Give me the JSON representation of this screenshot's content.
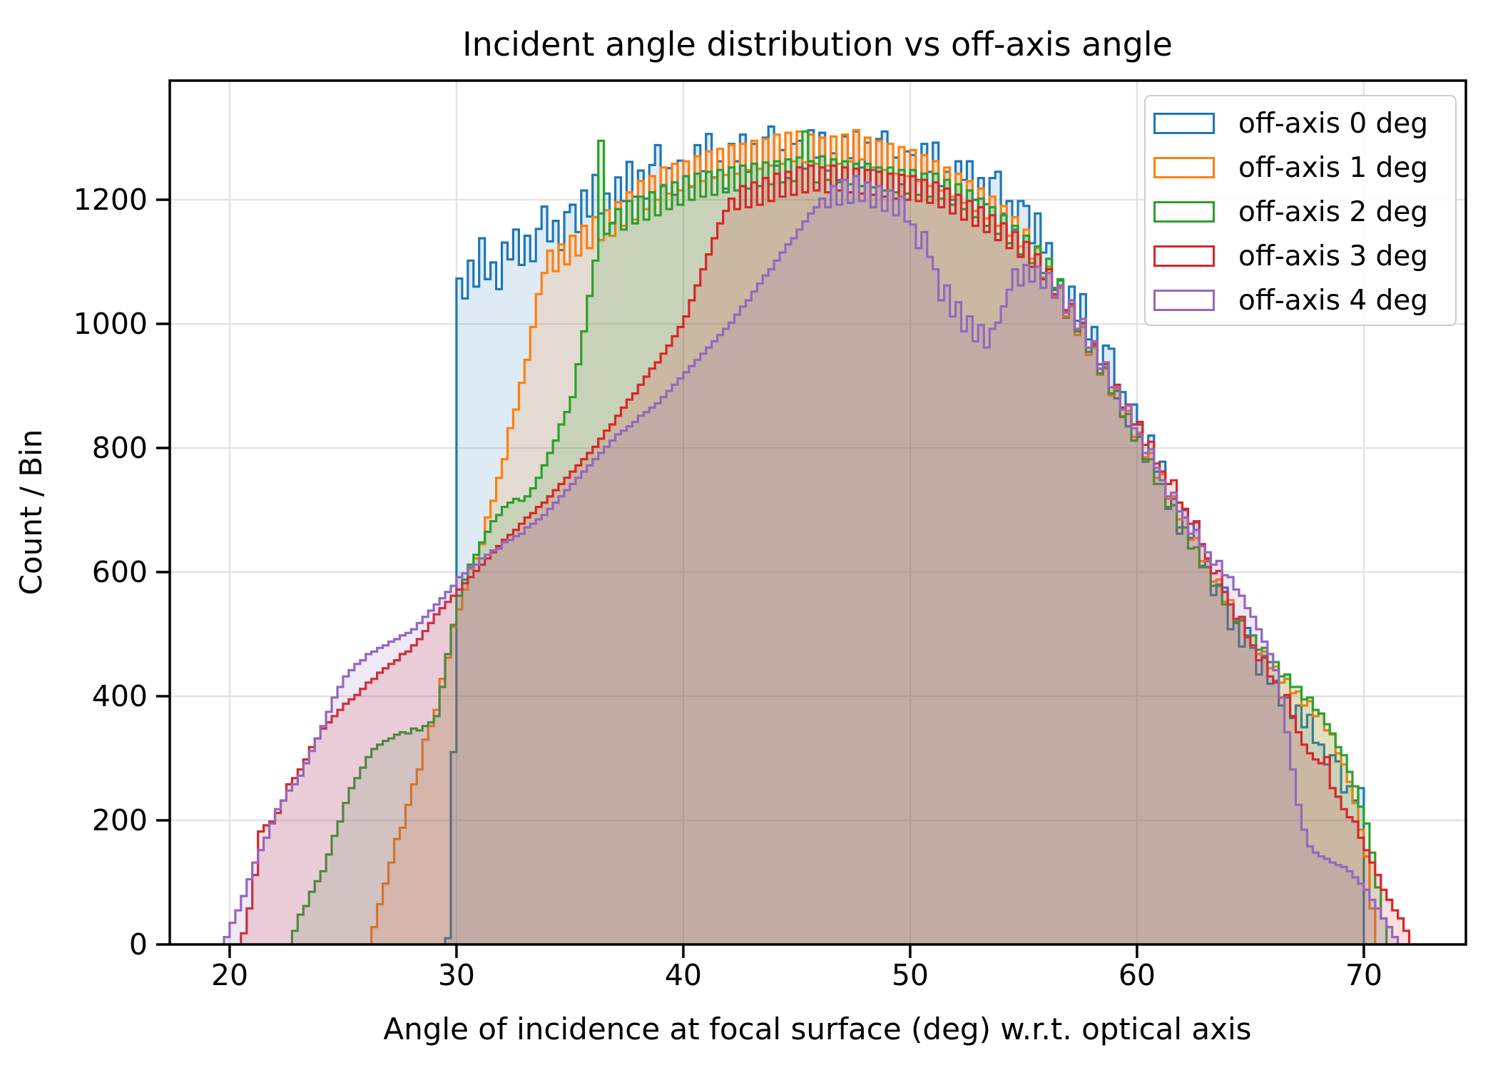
{
  "title": "Incident angle distribution vs off-axis angle",
  "xlabel": "Angle of incidence at focal surface (deg) w.r.t. optical axis",
  "ylabel": "Count / Bin",
  "colors": {
    "series_blue": "#1f77b4",
    "series_orange": "#ff7f0e",
    "series_green": "#2ca02c",
    "series_red": "#d62728",
    "series_purple": "#9467bd",
    "grid": "#e2e2e2",
    "spine": "#000000",
    "legend_border": "#cccccc"
  },
  "chart_data": {
    "type": "step-histogram",
    "title": "Incident angle distribution vs off-axis angle",
    "xlabel": "Angle of incidence at focal surface (deg) w.r.t. optical axis",
    "ylabel": "Count / Bin",
    "xlim": [
      17.36,
      74.5
    ],
    "ylim": [
      0,
      1392
    ],
    "xticks": [
      20,
      30,
      40,
      50,
      60,
      70
    ],
    "yticks": [
      0,
      200,
      400,
      600,
      800,
      1000,
      1200
    ],
    "grid": true,
    "legend_position": "upper right",
    "fill_alpha": 0.15,
    "bin_start": 19.75,
    "bin_width": 0.25,
    "series": [
      {
        "name": "off-axis 0 deg",
        "color": "#1f77b4",
        "counts": [
          0,
          0,
          0,
          0,
          0,
          0,
          0,
          0,
          0,
          0,
          0,
          0,
          0,
          0,
          0,
          0,
          0,
          0,
          0,
          0,
          0,
          0,
          0,
          0,
          0,
          0,
          0,
          0,
          0,
          0,
          0,
          0,
          0,
          0,
          0,
          0,
          0,
          0,
          0,
          10,
          310,
          1073,
          1041,
          1102,
          1060,
          1138,
          1072,
          1099,
          1056,
          1131,
          1104,
          1152,
          1095,
          1142,
          1101,
          1153,
          1189,
          1133,
          1166,
          1119,
          1180,
          1192,
          1148,
          1215,
          1173,
          1240,
          1178,
          1210,
          1163,
          1236,
          1198,
          1261,
          1205,
          1247,
          1202,
          1256,
          1288,
          1224,
          1251,
          1208,
          1263,
          1262,
          1221,
          1288,
          1246,
          1306,
          1236,
          1262,
          1218,
          1290,
          1262,
          1305,
          1245,
          1290,
          1250,
          1300,
          1318,
          1255,
          1280,
          1235,
          1290,
          1295,
          1250,
          1312,
          1268,
          1308,
          1247,
          1275,
          1232,
          1302,
          1267,
          1310,
          1252,
          1292,
          1248,
          1298,
          1310,
          1242,
          1268,
          1225,
          1278,
          1272,
          1232,
          1290,
          1245,
          1292,
          1222,
          1245,
          1200,
          1262,
          1232,
          1262,
          1200,
          1235,
          1193,
          1235,
          1245,
          1178,
          1198,
          1152,
          1198,
          1190,
          1130,
          1178,
          1115,
          1130,
          1055,
          1070,
          1010,
          1060,
          1005,
          1048,
          975,
          995,
          935,
          965,
          960,
          880,
          890,
          835,
          870,
          838,
          782,
          820,
          762,
          778,
          702,
          718,
          662,
          700,
          655,
          680,
          610,
          618,
          563,
          580,
          575,
          508,
          518,
          480,
          510,
          478,
          435,
          465,
          420,
          425,
          385,
          398,
          365,
          385,
          350,
          370,
          325,
          322,
          290,
          305,
          295,
          245,
          255,
          232,
          252,
          0,
          0,
          0,
          0,
          0,
          0,
          0,
          0
        ]
      },
      {
        "name": "off-axis 1 deg",
        "color": "#ff7f0e",
        "counts": [
          0,
          0,
          0,
          0,
          0,
          0,
          0,
          0,
          0,
          0,
          0,
          0,
          0,
          0,
          0,
          0,
          0,
          0,
          0,
          0,
          0,
          0,
          0,
          0,
          0,
          0,
          28,
          65,
          98,
          132,
          170,
          188,
          225,
          258,
          282,
          330,
          352,
          378,
          428,
          462,
          512,
          540,
          572,
          605,
          622,
          645,
          688,
          715,
          752,
          782,
          832,
          862,
          905,
          942,
          995,
          1048,
          1082,
          1118,
          1085,
          1128,
          1096,
          1142,
          1110,
          1158,
          1122,
          1172,
          1135,
          1183,
          1142,
          1196,
          1158,
          1212,
          1168,
          1230,
          1185,
          1238,
          1200,
          1252,
          1210,
          1258,
          1215,
          1262,
          1222,
          1270,
          1230,
          1278,
          1235,
          1282,
          1240,
          1288,
          1242,
          1290,
          1248,
          1295,
          1250,
          1298,
          1255,
          1305,
          1258,
          1308,
          1262,
          1310,
          1260,
          1305,
          1258,
          1300,
          1255,
          1302,
          1258,
          1305,
          1262,
          1312,
          1265,
          1300,
          1252,
          1295,
          1248,
          1290,
          1242,
          1285,
          1238,
          1280,
          1230,
          1272,
          1222,
          1262,
          1215,
          1252,
          1205,
          1242,
          1195,
          1230,
          1182,
          1218,
          1170,
          1205,
          1158,
          1190,
          1142,
          1172,
          1125,
          1152,
          1105,
          1122,
          1075,
          1092,
          1045,
          1058,
          1012,
          1028,
          982,
          995,
          950,
          962,
          918,
          928,
          885,
          895,
          852,
          860,
          818,
          825,
          785,
          792,
          752,
          758,
          718,
          722,
          685,
          688,
          652,
          655,
          618,
          620,
          585,
          588,
          552,
          555,
          522,
          525,
          495,
          498,
          468,
          472,
          445,
          448,
          422,
          428,
          405,
          408,
          385,
          392,
          368,
          372,
          345,
          338,
          308,
          290,
          262,
          228,
          185,
          142,
          58,
          0,
          0,
          0,
          0,
          0,
          0
        ]
      },
      {
        "name": "off-axis 2 deg",
        "color": "#2ca02c",
        "counts": [
          0,
          0,
          0,
          0,
          0,
          0,
          0,
          0,
          0,
          0,
          0,
          0,
          22,
          48,
          62,
          85,
          102,
          118,
          145,
          175,
          198,
          228,
          252,
          268,
          285,
          302,
          315,
          322,
          328,
          332,
          338,
          342,
          340,
          348,
          345,
          352,
          358,
          368,
          415,
          468,
          515,
          562,
          588,
          612,
          628,
          648,
          665,
          682,
          692,
          705,
          712,
          718,
          715,
          722,
          735,
          752,
          772,
          792,
          812,
          838,
          858,
          882,
          935,
          988,
          1045,
          1102,
          1295,
          1145,
          1162,
          1185,
          1152,
          1198,
          1162,
          1205,
          1168,
          1212,
          1175,
          1222,
          1185,
          1228,
          1192,
          1238,
          1200,
          1242,
          1205,
          1245,
          1208,
          1248,
          1212,
          1252,
          1215,
          1255,
          1218,
          1258,
          1222,
          1260,
          1225,
          1262,
          1228,
          1265,
          1230,
          1268,
          1310,
          1262,
          1228,
          1270,
          1232,
          1265,
          1228,
          1262,
          1225,
          1258,
          1222,
          1258,
          1220,
          1252,
          1215,
          1252,
          1212,
          1248,
          1210,
          1248,
          1208,
          1242,
          1205,
          1242,
          1202,
          1232,
          1192,
          1225,
          1185,
          1215,
          1172,
          1202,
          1158,
          1188,
          1145,
          1175,
          1130,
          1158,
          1112,
          1142,
          1098,
          1125,
          1082,
          1105,
          1058,
          1072,
          1022,
          1038,
          988,
          1000,
          955,
          965,
          920,
          930,
          888,
          892,
          850,
          855,
          812,
          818,
          778,
          782,
          742,
          742,
          705,
          708,
          672,
          672,
          638,
          640,
          608,
          608,
          578,
          578,
          548,
          548,
          520,
          522,
          498,
          498,
          475,
          478,
          455,
          455,
          432,
          435,
          415,
          415,
          395,
          398,
          378,
          372,
          355,
          340,
          318,
          305,
          278,
          255,
          222,
          195,
          148,
          92,
          42,
          0,
          0,
          0,
          0
        ]
      },
      {
        "name": "off-axis 3 deg",
        "color": "#d62728",
        "counts": [
          0,
          0,
          0,
          18,
          58,
          112,
          182,
          192,
          198,
          212,
          232,
          258,
          268,
          282,
          298,
          318,
          332,
          348,
          358,
          368,
          378,
          388,
          395,
          402,
          412,
          422,
          428,
          438,
          445,
          452,
          458,
          468,
          472,
          482,
          492,
          505,
          518,
          532,
          542,
          552,
          562,
          572,
          582,
          592,
          602,
          612,
          622,
          632,
          642,
          652,
          660,
          668,
          678,
          688,
          695,
          705,
          712,
          722,
          732,
          742,
          752,
          762,
          772,
          782,
          792,
          802,
          815,
          828,
          838,
          852,
          865,
          878,
          888,
          902,
          915,
          928,
          938,
          952,
          965,
          980,
          995,
          1012,
          1038,
          1062,
          1088,
          1112,
          1138,
          1162,
          1182,
          1202,
          1185,
          1222,
          1188,
          1228,
          1192,
          1235,
          1198,
          1242,
          1205,
          1245,
          1208,
          1252,
          1212,
          1255,
          1215,
          1252,
          1212,
          1255,
          1215,
          1252,
          1212,
          1250,
          1210,
          1248,
          1208,
          1245,
          1205,
          1242,
          1202,
          1240,
          1200,
          1238,
          1198,
          1232,
          1195,
          1228,
          1188,
          1218,
          1178,
          1208,
          1168,
          1198,
          1158,
          1188,
          1148,
          1175,
          1135,
          1162,
          1122,
          1148,
          1108,
          1132,
          1092,
          1112,
          1072,
          1088,
          1048,
          1062,
          1022,
          1032,
          992,
          1002,
          962,
          968,
          928,
          935,
          898,
          902,
          865,
          870,
          838,
          842,
          805,
          810,
          775,
          762,
          742,
          748,
          712,
          702,
          678,
          682,
          645,
          622,
          598,
          602,
          568,
          548,
          525,
          528,
          495,
          482,
          458,
          462,
          432,
          422,
          398,
          402,
          368,
          342,
          322,
          308,
          298,
          292,
          302,
          252,
          238,
          218,
          205,
          198,
          172,
          152,
          132,
          112,
          88,
          72,
          55,
          42,
          22
        ]
      },
      {
        "name": "off-axis 4 deg",
        "color": "#9467bd",
        "counts": [
          12,
          35,
          55,
          78,
          105,
          132,
          152,
          172,
          195,
          218,
          232,
          248,
          258,
          272,
          292,
          312,
          332,
          352,
          375,
          398,
          415,
          432,
          442,
          452,
          458,
          468,
          472,
          478,
          482,
          488,
          492,
          498,
          502,
          508,
          518,
          528,
          538,
          548,
          558,
          568,
          578,
          592,
          598,
          608,
          612,
          622,
          628,
          635,
          638,
          648,
          652,
          658,
          662,
          672,
          678,
          685,
          692,
          702,
          712,
          722,
          732,
          742,
          752,
          762,
          772,
          782,
          792,
          802,
          812,
          822,
          828,
          835,
          842,
          852,
          858,
          865,
          872,
          882,
          892,
          902,
          912,
          922,
          932,
          942,
          952,
          962,
          972,
          982,
          992,
          1002,
          1015,
          1028,
          1038,
          1052,
          1065,
          1078,
          1088,
          1102,
          1115,
          1128,
          1138,
          1152,
          1165,
          1178,
          1188,
          1202,
          1188,
          1222,
          1192,
          1232,
          1195,
          1238,
          1198,
          1228,
          1188,
          1222,
          1182,
          1215,
          1175,
          1205,
          1165,
          1160,
          1122,
          1148,
          1108,
          1088,
          1038,
          1062,
          1012,
          1035,
          988,
          1012,
          972,
          998,
          962,
          992,
          1002,
          1028,
          1055,
          1088,
          1062,
          1095,
          1068,
          1092,
          1058,
          1082,
          1042,
          1062,
          1018,
          1038,
          992,
          1008,
          962,
          972,
          928,
          938,
          898,
          898,
          862,
          868,
          832,
          822,
          792,
          798,
          768,
          748,
          722,
          728,
          698,
          688,
          662,
          668,
          642,
          632,
          612,
          618,
          595,
          592,
          572,
          562,
          542,
          528,
          508,
          488,
          468,
          442,
          398,
          342,
          282,
          225,
          185,
          158,
          148,
          142,
          138,
          132,
          128,
          125,
          118,
          108,
          98,
          88,
          72,
          58,
          42,
          28,
          12,
          0,
          0
        ]
      }
    ]
  }
}
